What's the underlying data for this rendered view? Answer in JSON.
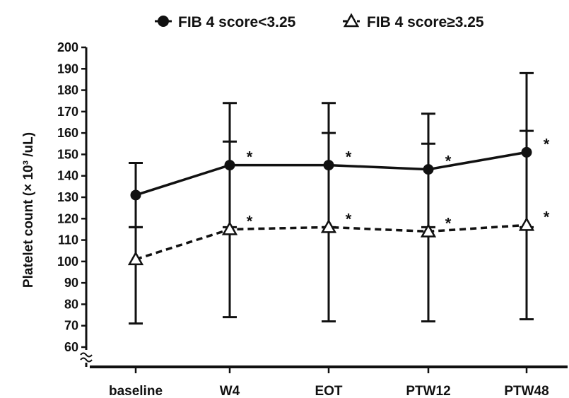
{
  "chart_data": {
    "type": "line",
    "title": "",
    "xlabel": "",
    "ylabel": "Platelet count (× 10³ /uL)",
    "categories": [
      "baseline",
      "W4",
      "EOT",
      "PTW12",
      "PTW48"
    ],
    "ylim": [
      60,
      200
    ],
    "yticks": [
      60,
      70,
      80,
      90,
      100,
      110,
      120,
      130,
      140,
      150,
      160,
      170,
      180,
      190,
      200
    ],
    "axis_break": true,
    "grid": false,
    "legend_position": "top",
    "significance_marker": "*",
    "series": [
      {
        "name": "FIB 4 score<3.25",
        "marker": "circle",
        "line_style": "solid",
        "values": [
          131,
          145,
          145,
          143,
          151
        ],
        "error_upper": [
          146,
          174,
          174,
          169,
          188
        ],
        "error_lower": [
          116,
          116,
          116,
          116,
          116
        ],
        "significant": [
          false,
          true,
          true,
          true,
          true
        ]
      },
      {
        "name": "FIB 4 score≥3.25",
        "marker": "triangle",
        "line_style": "dashed",
        "values": [
          101,
          115,
          116,
          114,
          117
        ],
        "error_upper": [
          116,
          156,
          160,
          155,
          161
        ],
        "error_lower": [
          71,
          74,
          72,
          72,
          73
        ],
        "significant": [
          false,
          true,
          true,
          true,
          true
        ]
      }
    ]
  }
}
